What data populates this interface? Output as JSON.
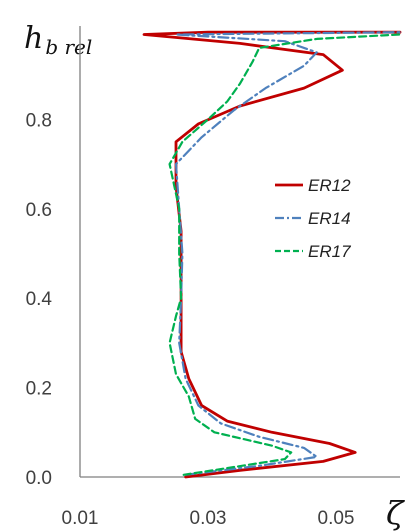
{
  "chart_data": {
    "type": "line",
    "title": "",
    "xlabel": "ζ",
    "ylabel": "h",
    "ylabel_subscript": "b rel",
    "xlim": [
      0.01,
      0.06
    ],
    "ylim": [
      0.0,
      1.0
    ],
    "xticks": [
      "0.01",
      "0.03",
      "0.05"
    ],
    "xtick_values": [
      0.01,
      0.03,
      0.05
    ],
    "yticks": [
      "0.0",
      "0.2",
      "0.4",
      "0.6",
      "0.8"
    ],
    "ytick_values": [
      0.0,
      0.2,
      0.4,
      0.6,
      0.8
    ],
    "grid": false,
    "legend_position": "right",
    "series": [
      {
        "name": "ER12",
        "color": "#c00000",
        "dash": "solid",
        "points": [
          {
            "x": 0.0265,
            "y": 0.0
          },
          {
            "x": 0.035,
            "y": 0.015
          },
          {
            "x": 0.048,
            "y": 0.035
          },
          {
            "x": 0.053,
            "y": 0.055
          },
          {
            "x": 0.049,
            "y": 0.075
          },
          {
            "x": 0.04,
            "y": 0.1
          },
          {
            "x": 0.033,
            "y": 0.125
          },
          {
            "x": 0.029,
            "y": 0.16
          },
          {
            "x": 0.027,
            "y": 0.22
          },
          {
            "x": 0.0258,
            "y": 0.28
          },
          {
            "x": 0.0258,
            "y": 0.4
          },
          {
            "x": 0.0258,
            "y": 0.55
          },
          {
            "x": 0.025,
            "y": 0.65
          },
          {
            "x": 0.025,
            "y": 0.75
          },
          {
            "x": 0.0285,
            "y": 0.79
          },
          {
            "x": 0.035,
            "y": 0.83
          },
          {
            "x": 0.045,
            "y": 0.87
          },
          {
            "x": 0.051,
            "y": 0.91
          },
          {
            "x": 0.048,
            "y": 0.945
          },
          {
            "x": 0.035,
            "y": 0.97
          },
          {
            "x": 0.02,
            "y": 0.99
          },
          {
            "x": 0.03,
            "y": 0.995
          },
          {
            "x": 0.06,
            "y": 0.995
          }
        ]
      },
      {
        "name": "ER14",
        "color": "#4f81bd",
        "dash": "dashdot",
        "points": [
          {
            "x": 0.0265,
            "y": 0.005
          },
          {
            "x": 0.038,
            "y": 0.025
          },
          {
            "x": 0.047,
            "y": 0.045
          },
          {
            "x": 0.045,
            "y": 0.065
          },
          {
            "x": 0.038,
            "y": 0.09
          },
          {
            "x": 0.032,
            "y": 0.12
          },
          {
            "x": 0.0285,
            "y": 0.16
          },
          {
            "x": 0.0265,
            "y": 0.22
          },
          {
            "x": 0.0255,
            "y": 0.3
          },
          {
            "x": 0.0258,
            "y": 0.4
          },
          {
            "x": 0.026,
            "y": 0.5
          },
          {
            "x": 0.0255,
            "y": 0.6
          },
          {
            "x": 0.025,
            "y": 0.7
          },
          {
            "x": 0.029,
            "y": 0.76
          },
          {
            "x": 0.034,
            "y": 0.82
          },
          {
            "x": 0.039,
            "y": 0.87
          },
          {
            "x": 0.045,
            "y": 0.92
          },
          {
            "x": 0.047,
            "y": 0.95
          },
          {
            "x": 0.042,
            "y": 0.975
          },
          {
            "x": 0.025,
            "y": 0.99
          },
          {
            "x": 0.06,
            "y": 0.995
          }
        ]
      },
      {
        "name": "ER17",
        "color": "#00b050",
        "dash": "dashed",
        "points": [
          {
            "x": 0.0262,
            "y": 0.005
          },
          {
            "x": 0.033,
            "y": 0.02
          },
          {
            "x": 0.042,
            "y": 0.04
          },
          {
            "x": 0.043,
            "y": 0.055
          },
          {
            "x": 0.04,
            "y": 0.07
          },
          {
            "x": 0.031,
            "y": 0.1
          },
          {
            "x": 0.028,
            "y": 0.13
          },
          {
            "x": 0.027,
            "y": 0.18
          },
          {
            "x": 0.025,
            "y": 0.23
          },
          {
            "x": 0.024,
            "y": 0.3
          },
          {
            "x": 0.025,
            "y": 0.36
          },
          {
            "x": 0.0258,
            "y": 0.4
          },
          {
            "x": 0.0255,
            "y": 0.5
          },
          {
            "x": 0.0255,
            "y": 0.6
          },
          {
            "x": 0.024,
            "y": 0.7
          },
          {
            "x": 0.026,
            "y": 0.75
          },
          {
            "x": 0.03,
            "y": 0.8
          },
          {
            "x": 0.033,
            "y": 0.84
          },
          {
            "x": 0.035,
            "y": 0.88
          },
          {
            "x": 0.037,
            "y": 0.93
          },
          {
            "x": 0.038,
            "y": 0.96
          },
          {
            "x": 0.047,
            "y": 0.98
          },
          {
            "x": 0.06,
            "y": 0.99
          }
        ]
      }
    ]
  }
}
